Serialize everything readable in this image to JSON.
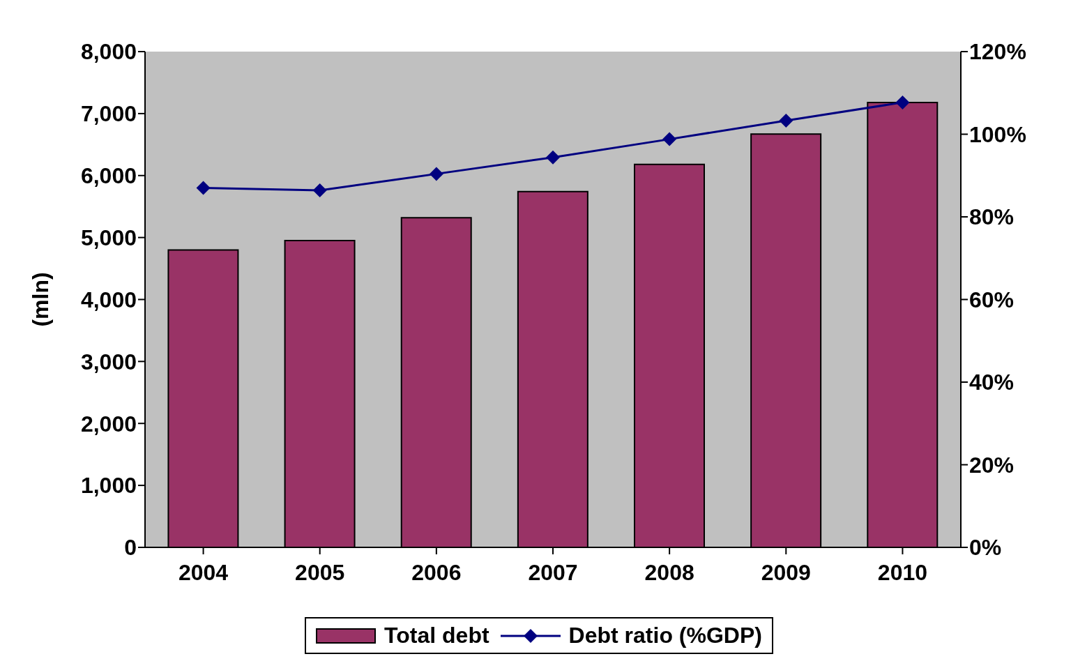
{
  "chart_data": {
    "type": "bar",
    "ylabel": "(mln)",
    "categories": [
      "2004",
      "2005",
      "2006",
      "2007",
      "2008",
      "2009",
      "2010"
    ],
    "series": [
      {
        "name": "Total debt",
        "color": "#993366",
        "values": [
          4800,
          4950,
          5320,
          5740,
          6180,
          6670,
          7180
        ]
      },
      {
        "name": "Debt ratio (%GDP)",
        "type": "line",
        "axis": "y2",
        "color": "#000080",
        "values": [
          87.0,
          86.4,
          90.4,
          94.4,
          98.8,
          103.3,
          107.7
        ]
      }
    ],
    "ylim": [
      0,
      8000
    ],
    "yticks": [
      {
        "value": 0,
        "label": "0"
      },
      {
        "value": 1000,
        "label": "1,000"
      },
      {
        "value": 2000,
        "label": "2,000"
      },
      {
        "value": 3000,
        "label": "3,000"
      },
      {
        "value": 4000,
        "label": "4,000"
      },
      {
        "value": 5000,
        "label": "5,000"
      },
      {
        "value": 6000,
        "label": "6,000"
      },
      {
        "value": 7000,
        "label": "7,000"
      },
      {
        "value": 8000,
        "label": "8,000"
      }
    ],
    "y2lim": [
      0,
      120
    ],
    "y2ticks": [
      {
        "value": 0,
        "label": "0%"
      },
      {
        "value": 20,
        "label": "20%"
      },
      {
        "value": 40,
        "label": "40%"
      },
      {
        "value": 60,
        "label": "60%"
      },
      {
        "value": 80,
        "label": "80%"
      },
      {
        "value": 100,
        "label": "100%"
      },
      {
        "value": 120,
        "label": "120%"
      }
    ],
    "grid": false,
    "legend": "bottom",
    "marker": "diamond",
    "line_style": "solid"
  }
}
